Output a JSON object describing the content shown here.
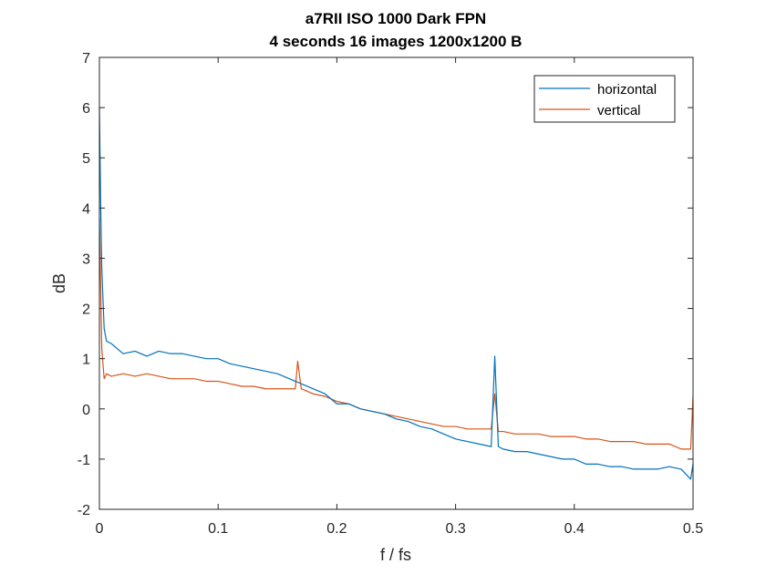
{
  "chart_data": {
    "type": "line",
    "title": [
      "a7RII ISO 1000 Dark FPN",
      "4 seconds 16 images 1200x1200 B"
    ],
    "xlabel": "f / fs",
    "ylabel": "dB",
    "xlim": [
      0,
      0.5
    ],
    "ylim": [
      -2,
      7
    ],
    "xticks": [
      0,
      0.1,
      0.2,
      0.3,
      0.4,
      0.5
    ],
    "xtick_labels": [
      "0",
      "0.1",
      "0.2",
      "0.3",
      "0.4",
      "0.5"
    ],
    "yticks": [
      -2,
      -1,
      0,
      1,
      2,
      3,
      4,
      5,
      6,
      7
    ],
    "ytick_labels": [
      "-2",
      "-1",
      "0",
      "1",
      "2",
      "3",
      "4",
      "5",
      "6",
      "7"
    ],
    "grid": false,
    "legend": "top-right",
    "series": [
      {
        "name": "horizontal",
        "color": "#0072BD",
        "x": [
          0,
          0.001,
          0.002,
          0.004,
          0.006,
          0.01,
          0.02,
          0.03,
          0.04,
          0.05,
          0.06,
          0.07,
          0.08,
          0.09,
          0.1,
          0.11,
          0.12,
          0.13,
          0.14,
          0.15,
          0.16,
          0.17,
          0.18,
          0.19,
          0.2,
          0.21,
          0.22,
          0.23,
          0.24,
          0.25,
          0.26,
          0.27,
          0.28,
          0.29,
          0.3,
          0.31,
          0.32,
          0.33,
          0.333,
          0.336,
          0.34,
          0.35,
          0.36,
          0.37,
          0.38,
          0.39,
          0.4,
          0.41,
          0.42,
          0.43,
          0.44,
          0.45,
          0.46,
          0.47,
          0.48,
          0.49,
          0.498,
          0.5
        ],
        "y": [
          6.0,
          4.2,
          2.8,
          1.6,
          1.35,
          1.3,
          1.1,
          1.15,
          1.05,
          1.15,
          1.1,
          1.1,
          1.05,
          1.0,
          1.0,
          0.9,
          0.85,
          0.8,
          0.75,
          0.7,
          0.6,
          0.5,
          0.4,
          0.3,
          0.1,
          0.1,
          0.0,
          -0.05,
          -0.1,
          -0.2,
          -0.25,
          -0.35,
          -0.4,
          -0.5,
          -0.6,
          -0.65,
          -0.7,
          -0.75,
          1.05,
          -0.75,
          -0.8,
          -0.85,
          -0.85,
          -0.9,
          -0.95,
          -1.0,
          -1.0,
          -1.1,
          -1.1,
          -1.15,
          -1.15,
          -1.2,
          -1.2,
          -1.2,
          -1.15,
          -1.2,
          -1.4,
          -1.1
        ]
      },
      {
        "name": "vertical",
        "color": "#D95319",
        "x": [
          0,
          0.001,
          0.002,
          0.004,
          0.006,
          0.01,
          0.02,
          0.03,
          0.04,
          0.05,
          0.06,
          0.07,
          0.08,
          0.09,
          0.1,
          0.11,
          0.12,
          0.13,
          0.14,
          0.15,
          0.16,
          0.165,
          0.167,
          0.17,
          0.18,
          0.19,
          0.2,
          0.21,
          0.22,
          0.23,
          0.24,
          0.25,
          0.26,
          0.27,
          0.28,
          0.29,
          0.3,
          0.31,
          0.32,
          0.33,
          0.333,
          0.336,
          0.34,
          0.35,
          0.36,
          0.37,
          0.38,
          0.39,
          0.4,
          0.41,
          0.42,
          0.43,
          0.44,
          0.45,
          0.46,
          0.47,
          0.48,
          0.49,
          0.498,
          0.5
        ],
        "y": [
          3.8,
          2.5,
          1.2,
          0.6,
          0.7,
          0.65,
          0.7,
          0.65,
          0.7,
          0.65,
          0.6,
          0.6,
          0.6,
          0.55,
          0.55,
          0.5,
          0.45,
          0.45,
          0.4,
          0.4,
          0.4,
          0.4,
          0.95,
          0.4,
          0.3,
          0.25,
          0.15,
          0.1,
          0.0,
          -0.05,
          -0.1,
          -0.15,
          -0.2,
          -0.25,
          -0.3,
          -0.35,
          -0.35,
          -0.4,
          -0.4,
          -0.4,
          0.3,
          -0.45,
          -0.45,
          -0.5,
          -0.5,
          -0.5,
          -0.55,
          -0.55,
          -0.55,
          -0.6,
          -0.6,
          -0.65,
          -0.65,
          -0.65,
          -0.7,
          -0.7,
          -0.7,
          -0.8,
          -0.8,
          0.25
        ]
      }
    ]
  }
}
